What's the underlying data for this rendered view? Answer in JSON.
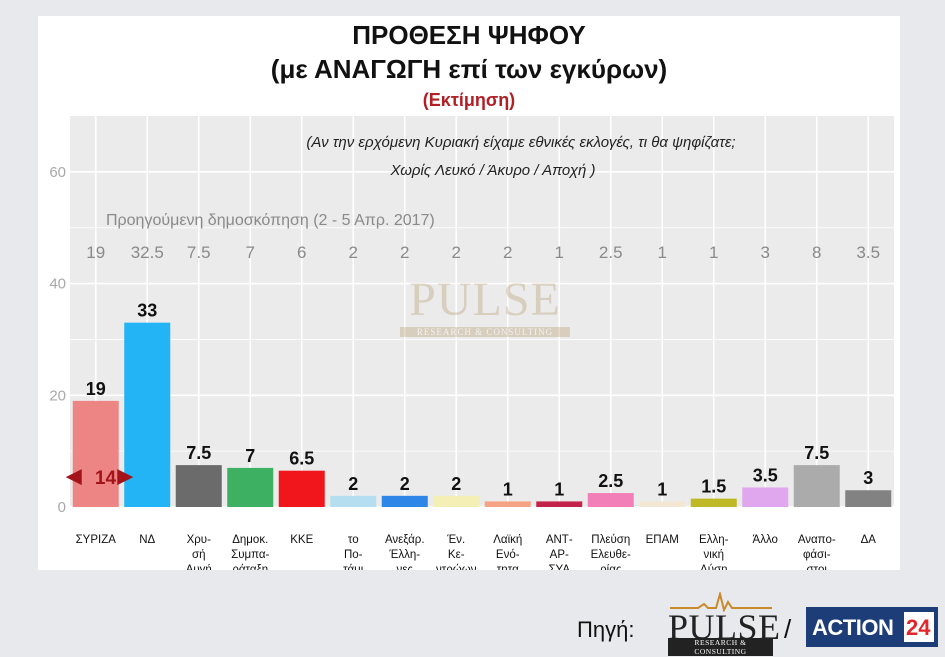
{
  "titles": {
    "main": "ΠΡΟΘΕΣΗ ΨΗΦΟΥ",
    "sub": "(με ΑΝΑΓΩΓΗ επί των εγκύρων)",
    "estimate": "(Εκτίμηση)"
  },
  "question": {
    "line1": "(Αν την ερχόμενη Κυριακή είχαμε εθνικές εκλογές, τι θα ψηφίζατε;",
    "line2": "Χωρίς Λευκό / Άκυρο / Αποχή )"
  },
  "watermark": {
    "main": "PULSE",
    "sub": "RESEARCH & CONSULTING"
  },
  "footer": {
    "source_label": "Πηγή:",
    "pulse_main": "PULSE",
    "pulse_sub": "RESEARCH & CONSULTING",
    "separator": "/",
    "action_text": "ACTION",
    "action_num": "24"
  },
  "chart_data": {
    "type": "bar",
    "ylim": [
      0,
      70
    ],
    "yticks": [
      0,
      20,
      40,
      60
    ],
    "grid": true,
    "categories": [
      [
        "ΣΥΡΙΖΑ"
      ],
      [
        "ΝΔ"
      ],
      [
        "Χρυ-",
        "σή",
        "Αυγή"
      ],
      [
        "Δημοκ.",
        "Συμπα-",
        "ράταξη"
      ],
      [
        "ΚΚΕ"
      ],
      [
        "το",
        "Πο-",
        "τάμι"
      ],
      [
        "Ανεξάρ.",
        "Έλλη-",
        "νες"
      ],
      [
        "Έν.",
        "Κε-",
        "ντρώων"
      ],
      [
        "Λαϊκή",
        "Ενό-",
        "τητα"
      ],
      [
        "ΑΝΤ-",
        "ΑΡ-",
        "ΣΥΑ"
      ],
      [
        "Πλεύση",
        "Ελευθε-",
        "ρίας"
      ],
      [
        "ΕΠΑΜ"
      ],
      [
        "Ελλη-",
        "νική",
        "Λύση"
      ],
      [
        "Άλλο"
      ],
      [
        "Αναπο-",
        "φάσι-",
        "στοι"
      ],
      [
        "ΔΑ"
      ]
    ],
    "values": [
      19,
      33,
      7.5,
      7,
      6.5,
      2,
      2,
      2,
      1,
      1,
      2.5,
      1,
      1.5,
      3.5,
      7.5,
      3
    ],
    "value_labels": [
      "19",
      "33",
      "7.5",
      "7",
      "6.5",
      "2",
      "2",
      "2",
      "1",
      "1",
      "2.5",
      "1",
      "1.5",
      "3.5",
      "7.5",
      "3"
    ],
    "colors": [
      "#ee8585",
      "#22b4f5",
      "#6b6b6b",
      "#3db061",
      "#f0161b",
      "#b5dff0",
      "#2e86e6",
      "#f4efb4",
      "#f5a285",
      "#c3234a",
      "#f27fb8",
      "#f3e7d3",
      "#bfb827",
      "#e0a7ef",
      "#ababab",
      "#828282"
    ],
    "previous_poll": {
      "label": "Προηγούμενη δημοσκόπηση (2 - 5 Απρ. 2017)",
      "values": [
        "19",
        "32.5",
        "7.5",
        "7",
        "6",
        "2",
        "2",
        "2",
        "2",
        "1",
        "2.5",
        "1",
        "1",
        "3",
        "8",
        "3.5"
      ]
    },
    "gap_annotation": {
      "text": "14",
      "color": "#a3141a"
    }
  }
}
